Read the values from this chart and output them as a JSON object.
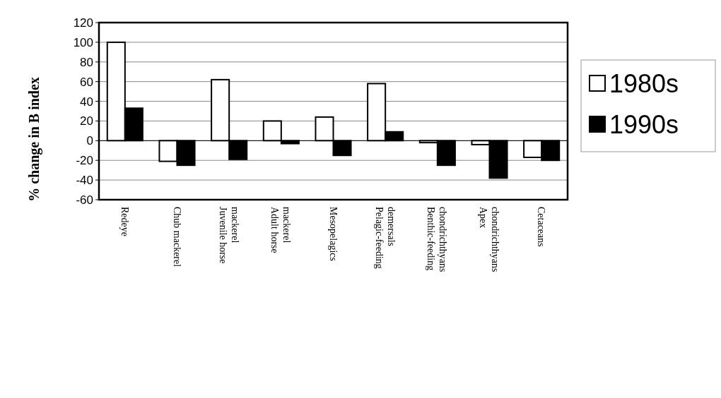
{
  "chart_data": {
    "type": "bar",
    "ylabel": "% change in B index",
    "categories": [
      "Redeye",
      "Chub mackerel",
      "Juvenile horse mackerel",
      "Adult horse mackerel",
      "Mesopelagics",
      "Pelagic-feeding demersals",
      "Benthic-feeding chondrichthyans",
      "Apex chondrichthyans",
      "Cetaceans"
    ],
    "series": [
      {
        "name": "1980s",
        "color": "#ffffff",
        "values": [
          100,
          -21,
          62,
          20,
          24,
          58,
          -2,
          -4,
          -17
        ]
      },
      {
        "name": "1990s",
        "color": "#000000",
        "values": [
          33,
          -25,
          -19,
          -3,
          -15,
          9,
          -25,
          -38,
          -20
        ]
      }
    ],
    "ylim": [
      -60,
      120
    ],
    "yticks": [
      -60,
      -40,
      -20,
      0,
      20,
      40,
      60,
      80,
      100,
      120
    ],
    "grid": "y",
    "legend": "right"
  }
}
